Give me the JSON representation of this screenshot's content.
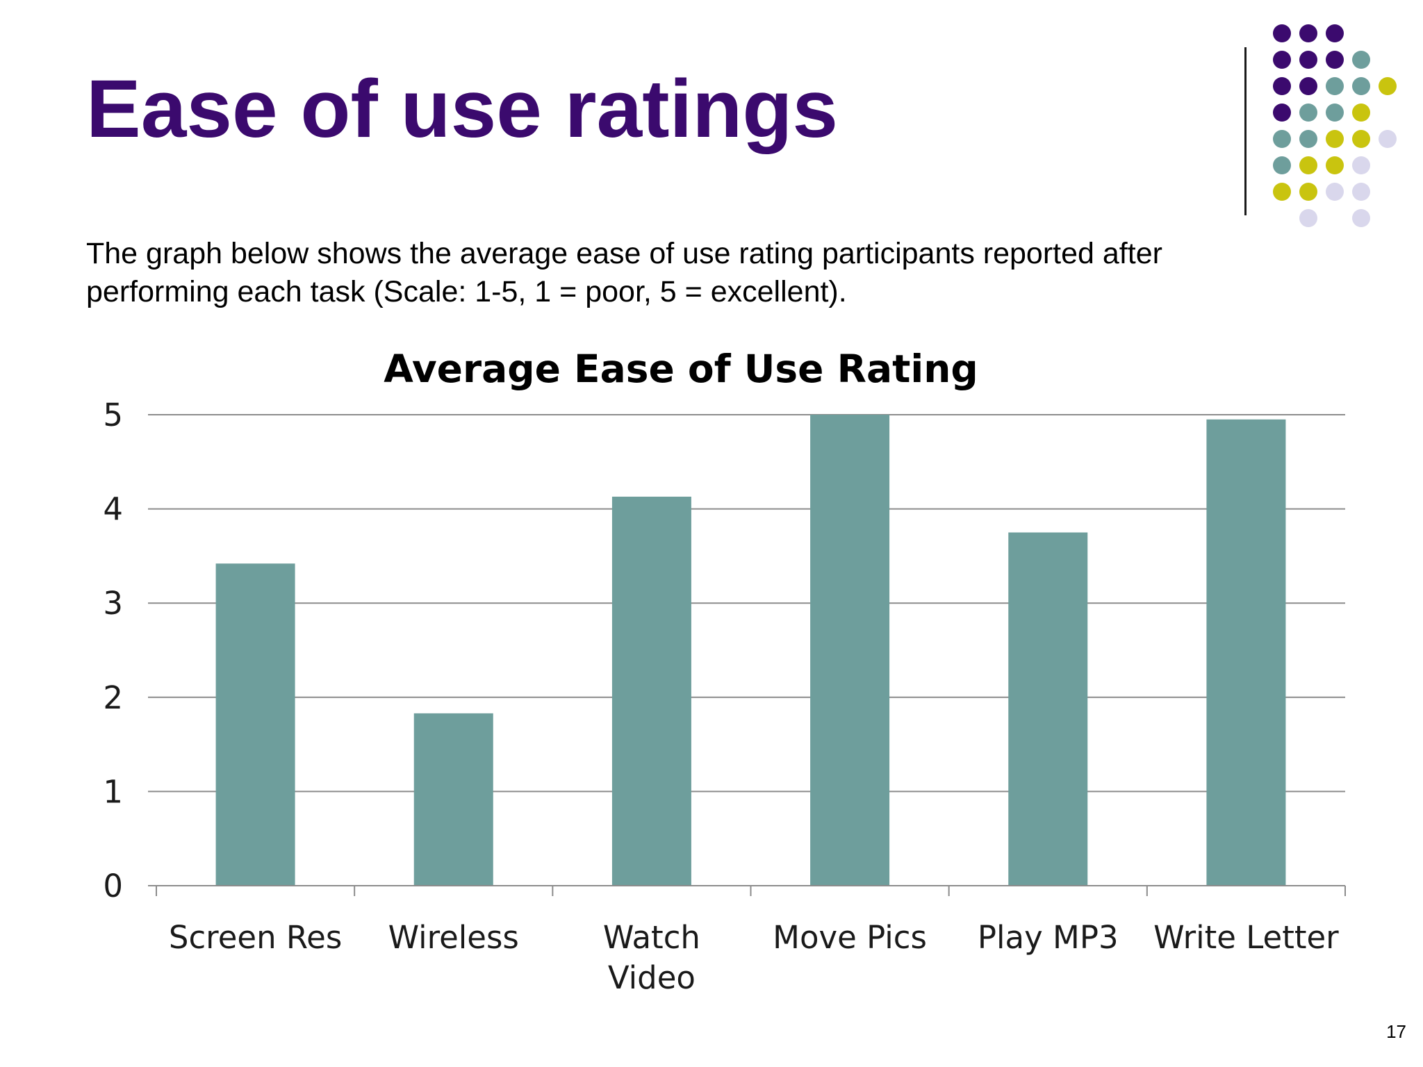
{
  "slide": {
    "title": "Ease of use ratings",
    "intro": "The graph below shows the average ease of use rating participants reported after performing each task (Scale: 1-5, 1 = poor, 5 = excellent).",
    "page_number": "17"
  },
  "colors": {
    "title": "#3b0a6e",
    "bar": "#6e9e9c",
    "dot_purple": "#3b0a6e",
    "dot_teal": "#6e9e9c",
    "dot_yellow": "#c9c40f",
    "dot_lavender": "#d9d7ec",
    "gridline": "#8c8c8c"
  },
  "chart_data": {
    "type": "bar",
    "title": "Average Ease of Use Rating",
    "xlabel": "",
    "ylabel": "",
    "categories": [
      "Screen Res",
      "Wireless",
      "Watch Video",
      "Move Pics",
      "Play MP3",
      "Write Letter"
    ],
    "values": [
      3.42,
      1.83,
      4.13,
      5.0,
      3.75,
      4.95
    ],
    "ylim": [
      0,
      5
    ],
    "yticks": [
      "0",
      "1",
      "2",
      "3",
      "4",
      "5"
    ],
    "grid": true,
    "legend": "none"
  }
}
